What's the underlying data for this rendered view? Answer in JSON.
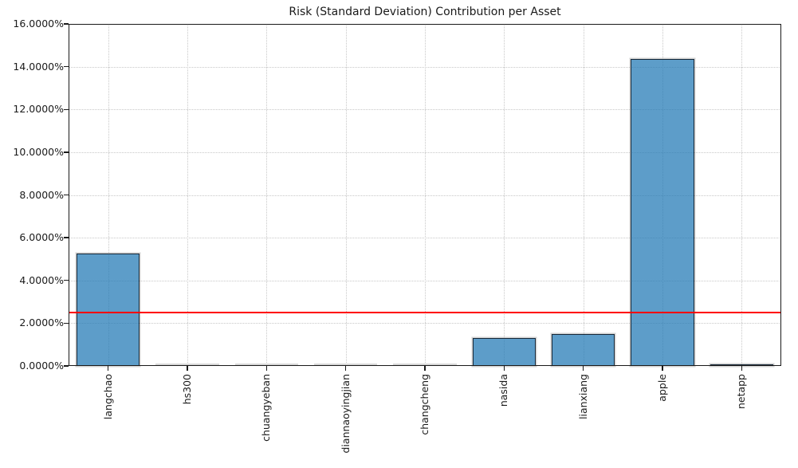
{
  "chart_data": {
    "type": "bar",
    "title": "Risk (Standard Deviation) Contribution per Asset",
    "categories": [
      "langchao",
      "hs300",
      "chuangyeban",
      "diannaoyingjian",
      "changcheng",
      "nasida",
      "lianxiang",
      "apple",
      "netapp"
    ],
    "values": [
      5.26,
      0.005,
      0.005,
      0.005,
      0.005,
      1.3,
      1.48,
      14.37,
      0.09
    ],
    "unit": "%",
    "xlabel": "",
    "ylabel": "",
    "ylim": [
      0,
      16
    ],
    "ytick_step": 2,
    "ytick_labels": [
      "0.0000%",
      "2.0000%",
      "4.0000%",
      "6.0000%",
      "8.0000%",
      "10.0000%",
      "12.0000%",
      "14.0000%",
      "16.0000%"
    ],
    "reference_line": {
      "value": 2.5,
      "color": "#ff0000"
    },
    "grid": true,
    "legend": "none",
    "colors": {
      "bar_fill": "rgba(31,119,180,0.72)",
      "bar_fill_hex": "#5e9dc9",
      "bar_edge": "#101c28",
      "zero_bar": "#d6d6d6",
      "grid": "#c8c8c8",
      "axis": "#1a1a1a",
      "background": "#ffffff",
      "reference_line": "#ff0000"
    }
  }
}
